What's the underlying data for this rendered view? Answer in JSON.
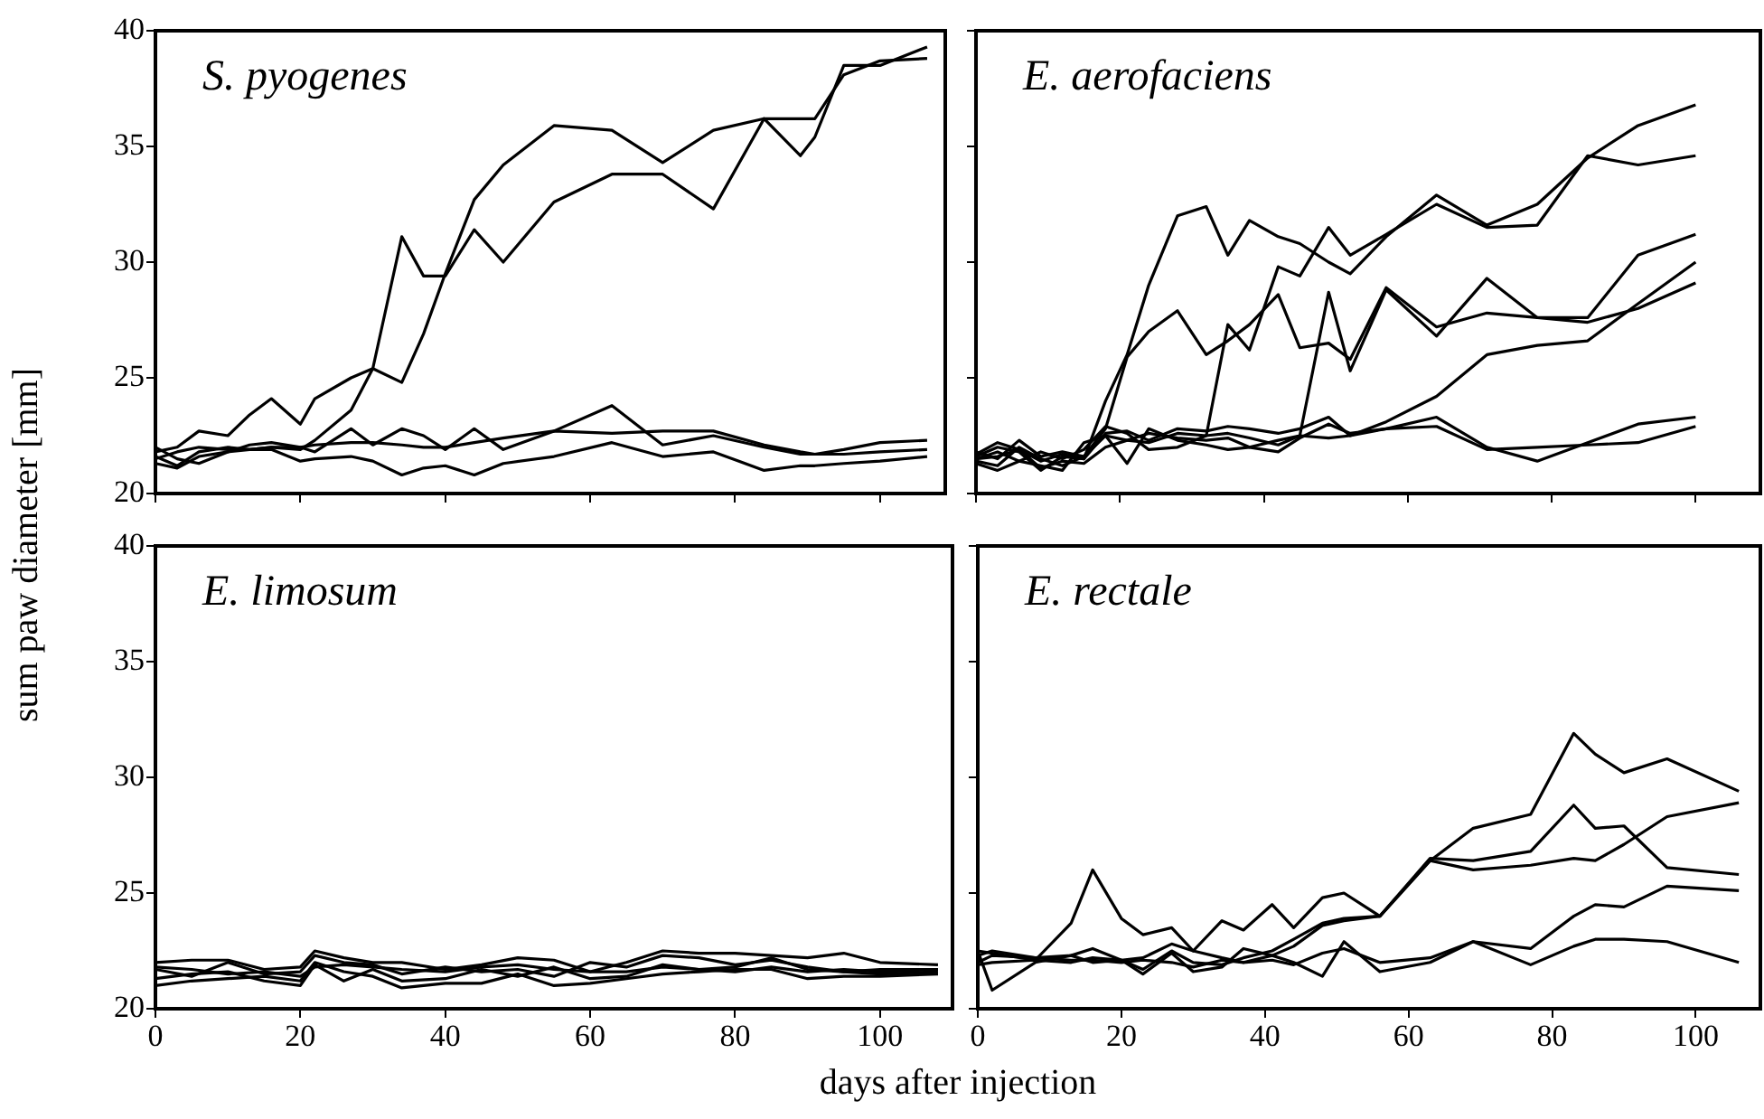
{
  "chart_data": [
    {
      "type": "line",
      "title": "S. pyogenes",
      "ylabel": "sum paw diameter [mm]",
      "xlim": [
        0,
        109
      ],
      "ylim": [
        20,
        40
      ],
      "xticks": [
        0,
        20,
        40,
        60,
        80,
        100
      ],
      "yticks": [
        20,
        25,
        30,
        35,
        40
      ],
      "tick_labels": "y",
      "x": [
        0,
        3,
        6,
        10,
        13,
        16,
        20,
        22,
        27,
        30,
        34,
        37,
        40,
        44,
        48,
        55,
        63,
        70,
        77,
        84,
        89,
        91,
        95,
        100,
        106.5
      ],
      "series": [
        {
          "color": "#000000",
          "values": [
            21.8,
            22.0,
            22.7,
            22.5,
            23.4,
            24.1,
            23.0,
            24.1,
            25.0,
            25.4,
            31.1,
            29.4,
            29.4,
            31.4,
            30.0,
            32.6,
            33.8,
            33.8,
            32.3,
            36.2,
            34.6,
            35.4,
            38.5,
            38.5,
            39.3
          ]
        },
        {
          "color": "#000000",
          "values": [
            21.6,
            21.2,
            21.8,
            22.0,
            21.9,
            22.0,
            21.9,
            22.3,
            23.6,
            25.4,
            24.8,
            26.9,
            29.5,
            32.7,
            34.2,
            35.9,
            35.7,
            34.3,
            35.7,
            36.2,
            36.2,
            36.2,
            38.1,
            38.7,
            38.8
          ]
        },
        {
          "color": "#000000",
          "values": [
            22.0,
            21.5,
            21.3,
            21.8,
            22.1,
            22.2,
            22.0,
            21.8,
            22.8,
            22.1,
            22.8,
            22.5,
            21.9,
            22.8,
            21.9,
            22.7,
            23.8,
            22.1,
            22.5,
            22.0,
            21.7,
            21.7,
            21.9,
            22.2,
            22.3
          ]
        },
        {
          "color": "#000000",
          "values": [
            21.5,
            21.8,
            22.0,
            21.9,
            21.9,
            22.0,
            22.0,
            22.1,
            22.2,
            22.2,
            22.1,
            22.0,
            22.0,
            22.2,
            22.4,
            22.7,
            22.6,
            22.7,
            22.7,
            22.1,
            21.8,
            21.7,
            21.7,
            21.8,
            21.9
          ]
        },
        {
          "color": "#000000",
          "values": [
            21.3,
            21.1,
            21.6,
            21.8,
            21.9,
            21.9,
            21.4,
            21.5,
            21.6,
            21.4,
            20.8,
            21.1,
            21.2,
            20.8,
            21.3,
            21.6,
            22.2,
            21.6,
            21.8,
            21.0,
            21.2,
            21.2,
            21.3,
            21.4,
            21.6
          ]
        }
      ]
    },
    {
      "type": "line",
      "title": "E. aerofaciens",
      "xlim": [
        0,
        109
      ],
      "ylim": [
        20,
        40
      ],
      "xticks": [
        0,
        20,
        40,
        60,
        80,
        100
      ],
      "yticks": [
        20,
        25,
        30,
        35,
        40
      ],
      "tick_labels": false,
      "x": [
        0,
        3,
        6,
        9,
        12,
        15,
        18,
        21,
        24,
        28,
        32,
        35,
        38,
        42,
        45,
        49,
        52,
        57,
        64,
        71,
        78,
        85,
        92,
        100
      ],
      "series": [
        {
          "color": "#000000",
          "values": [
            21.6,
            22.0,
            21.8,
            21.0,
            21.6,
            21.5,
            24.0,
            26.0,
            29.0,
            32.0,
            32.4,
            30.3,
            31.8,
            31.1,
            30.8,
            30.0,
            29.5,
            31.1,
            32.9,
            31.6,
            32.5,
            34.5,
            35.9,
            36.8
          ]
        },
        {
          "color": "#000000",
          "values": [
            21.8,
            21.5,
            22.3,
            21.6,
            21.8,
            21.6,
            22.5,
            22.3,
            22.2,
            22.6,
            22.5,
            27.3,
            26.2,
            29.8,
            29.4,
            31.5,
            30.3,
            31.2,
            32.5,
            31.5,
            31.6,
            34.6,
            34.2,
            34.6
          ]
        },
        {
          "color": "#000000",
          "values": [
            21.4,
            21.2,
            22.0,
            21.5,
            21.2,
            21.6,
            22.8,
            25.9,
            27.0,
            27.9,
            26.0,
            26.6,
            27.3,
            28.6,
            26.3,
            26.5,
            25.8,
            28.9,
            27.2,
            27.8,
            27.6,
            27.6,
            30.3,
            31.2
          ]
        },
        {
          "color": "#000000",
          "values": [
            21.5,
            21.8,
            21.4,
            21.8,
            21.5,
            21.9,
            22.9,
            22.6,
            21.9,
            22.0,
            22.5,
            22.6,
            22.4,
            22.1,
            22.5,
            28.7,
            25.3,
            28.8,
            26.8,
            29.3,
            27.6,
            27.4,
            28.0,
            29.1
          ]
        },
        {
          "color": "#000000",
          "values": [
            21.3,
            21.0,
            21.4,
            21.2,
            21.0,
            22.2,
            22.5,
            21.3,
            22.8,
            22.3,
            22.1,
            21.9,
            22.0,
            22.3,
            22.5,
            22.4,
            22.5,
            23.1,
            24.2,
            26.0,
            26.4,
            26.6,
            28.2,
            30.0
          ]
        },
        {
          "color": "#000000",
          "values": [
            21.7,
            22.2,
            21.9,
            21.4,
            21.7,
            21.5,
            22.6,
            22.7,
            22.3,
            22.8,
            22.7,
            22.9,
            22.8,
            22.6,
            22.8,
            23.3,
            22.5,
            22.8,
            23.3,
            22.0,
            21.4,
            22.2,
            23.0,
            23.3
          ]
        },
        {
          "color": "#000000",
          "values": [
            21.5,
            21.6,
            21.9,
            21.1,
            21.4,
            21.3,
            22.0,
            22.3,
            22.6,
            22.4,
            22.3,
            22.4,
            22.0,
            21.8,
            22.4,
            23.0,
            22.6,
            22.8,
            22.9,
            21.9,
            22.0,
            22.1,
            22.2,
            22.9
          ]
        }
      ]
    },
    {
      "type": "line",
      "title": "E. limosum",
      "xlabel": "days after injection",
      "xlim": [
        0,
        110
      ],
      "ylim": [
        20,
        40
      ],
      "xticks": [
        0,
        20,
        40,
        60,
        80,
        100
      ],
      "yticks": [
        20,
        25,
        30,
        35,
        40
      ],
      "x": [
        0,
        5,
        10,
        15,
        20,
        22,
        26,
        30,
        34,
        40,
        45,
        50,
        55,
        60,
        65,
        70,
        75,
        80,
        85,
        90,
        95,
        100,
        108
      ],
      "series": [
        {
          "color": "#000000",
          "values": [
            22.0,
            22.1,
            22.1,
            21.7,
            21.8,
            22.5,
            22.2,
            22.0,
            22.0,
            21.7,
            21.9,
            22.2,
            22.1,
            21.6,
            22.0,
            22.5,
            22.4,
            22.4,
            22.3,
            22.2,
            22.4,
            22.0,
            21.9
          ]
        },
        {
          "color": "#000000",
          "values": [
            21.7,
            21.4,
            22.0,
            21.5,
            21.6,
            22.3,
            22.0,
            21.9,
            21.5,
            21.8,
            21.6,
            21.7,
            21.4,
            22.0,
            21.8,
            22.3,
            22.2,
            21.9,
            22.1,
            21.8,
            21.6,
            21.7,
            21.7
          ]
        },
        {
          "color": "#000000",
          "values": [
            21.3,
            21.5,
            21.6,
            21.2,
            21.0,
            21.9,
            21.2,
            21.7,
            21.2,
            21.3,
            21.7,
            21.4,
            21.8,
            21.3,
            21.4,
            21.9,
            21.7,
            21.8,
            22.2,
            21.7,
            21.6,
            21.5,
            21.6
          ]
        },
        {
          "color": "#000000",
          "values": [
            21.0,
            21.2,
            21.3,
            21.4,
            21.2,
            22.0,
            21.6,
            21.4,
            20.9,
            21.1,
            21.1,
            21.5,
            21.0,
            21.1,
            21.3,
            21.5,
            21.6,
            21.7,
            21.7,
            21.3,
            21.4,
            21.4,
            21.5
          ]
        },
        {
          "color": "#000000",
          "values": [
            21.8,
            21.7,
            21.5,
            21.6,
            21.4,
            21.8,
            21.9,
            21.8,
            21.7,
            21.6,
            21.8,
            21.9,
            21.7,
            21.6,
            21.6,
            21.8,
            21.7,
            21.6,
            21.8,
            21.6,
            21.7,
            21.6,
            21.7
          ]
        }
      ]
    },
    {
      "type": "line",
      "title": "E. rectale",
      "xlim": [
        0,
        109
      ],
      "ylim": [
        20,
        40
      ],
      "xticks": [
        0,
        20,
        40,
        60,
        80,
        100
      ],
      "yticks": [
        20,
        25,
        30,
        35,
        40
      ],
      "tick_labels": "x",
      "x": [
        0,
        2,
        8,
        13,
        16,
        20,
        23,
        27,
        30,
        34,
        37,
        41,
        44,
        48,
        51,
        56,
        63,
        69,
        77,
        83,
        86,
        90,
        96,
        106
      ],
      "series": [
        {
          "color": "#000000",
          "values": [
            22.5,
            22.4,
            22.1,
            23.7,
            26.0,
            23.9,
            23.2,
            23.5,
            22.5,
            23.8,
            23.4,
            24.5,
            23.5,
            24.8,
            25.0,
            24.0,
            26.4,
            27.8,
            28.4,
            31.9,
            31.0,
            30.2,
            30.8,
            29.4
          ]
        },
        {
          "color": "#000000",
          "values": [
            21.9,
            22.0,
            22.1,
            22.0,
            22.2,
            22.1,
            22.2,
            22.8,
            22.5,
            22.2,
            22.0,
            22.3,
            22.7,
            23.6,
            23.8,
            24.0,
            26.5,
            26.4,
            26.8,
            28.8,
            27.8,
            27.9,
            26.1,
            25.8
          ]
        },
        {
          "color": "#000000",
          "values": [
            22.0,
            22.3,
            22.2,
            22.3,
            22.6,
            22.1,
            21.7,
            22.5,
            22.0,
            21.9,
            22.2,
            22.5,
            23.0,
            23.7,
            23.9,
            24.0,
            26.4,
            26.0,
            26.2,
            26.5,
            26.4,
            27.1,
            28.3,
            28.9
          ]
        },
        {
          "color": "#000000",
          "values": [
            22.5,
            20.8,
            22.0,
            22.3,
            22.0,
            22.1,
            21.5,
            22.4,
            21.6,
            21.8,
            22.6,
            22.3,
            22.0,
            21.4,
            22.9,
            21.6,
            22.0,
            22.9,
            22.6,
            24.0,
            24.5,
            24.4,
            25.3,
            25.1
          ]
        },
        {
          "color": "#000000",
          "values": [
            22.3,
            22.5,
            22.2,
            22.1,
            22.1,
            22.0,
            22.1,
            22.0,
            21.8,
            22.1,
            22.0,
            22.1,
            21.9,
            22.4,
            22.6,
            22.0,
            22.2,
            22.9,
            21.9,
            22.7,
            23.0,
            23.0,
            22.9,
            22.0
          ]
        }
      ]
    }
  ]
}
